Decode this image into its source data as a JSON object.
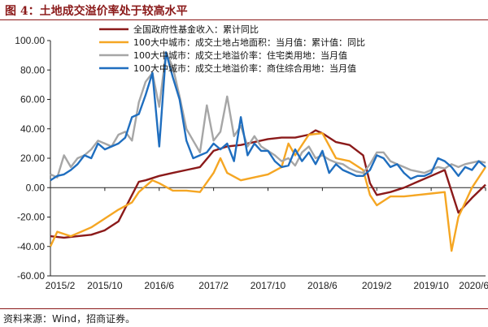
{
  "header": {
    "title": "图 4：土地成交溢价率处于较高水平"
  },
  "footer": {
    "source": "资料来源：Wind，招商证券。"
  },
  "chart_data": {
    "type": "line",
    "title": "",
    "xlabel": "",
    "ylabel": "",
    "ylim": [
      -60,
      100
    ],
    "yticks": [
      "100.00",
      "80.00",
      "60.00",
      "40.00",
      "20.00",
      "0.00",
      "-20.00",
      "-40.00",
      "-60.00"
    ],
    "xlim": [
      "2015-02",
      "2020-06"
    ],
    "xticks": [
      "2015/2",
      "2015/10",
      "2016/6",
      "2017/2",
      "2017/10",
      "2018/6",
      "2019/2",
      "2019/10",
      "2020/6"
    ],
    "grid": false,
    "legend_position": "top-left",
    "series": [
      {
        "name": "全国政府性基金收入：累计同比",
        "color": "#8b1a1a",
        "points": [
          [
            "2015-02",
            -33
          ],
          [
            "2015-04",
            -34
          ],
          [
            "2015-06",
            -33
          ],
          [
            "2015-08",
            -32
          ],
          [
            "2015-10",
            -29
          ],
          [
            "2015-12",
            -23
          ],
          [
            "2016-02",
            -5
          ],
          [
            "2016-03",
            4
          ],
          [
            "2016-04",
            5
          ],
          [
            "2016-06",
            8
          ],
          [
            "2016-08",
            10
          ],
          [
            "2016-10",
            12
          ],
          [
            "2016-12",
            14
          ],
          [
            "2017-02",
            25
          ],
          [
            "2017-04",
            28
          ],
          [
            "2017-06",
            29
          ],
          [
            "2017-08",
            31
          ],
          [
            "2017-10",
            33
          ],
          [
            "2017-12",
            34
          ],
          [
            "2018-02",
            34
          ],
          [
            "2018-04",
            36
          ],
          [
            "2018-05",
            39
          ],
          [
            "2018-06",
            37
          ],
          [
            "2018-08",
            31
          ],
          [
            "2018-10",
            29
          ],
          [
            "2018-12",
            22
          ],
          [
            "2019-01",
            3
          ],
          [
            "2019-02",
            -5
          ],
          [
            "2019-04",
            -3
          ],
          [
            "2019-06",
            0
          ],
          [
            "2019-08",
            4
          ],
          [
            "2019-10",
            8
          ],
          [
            "2019-12",
            12
          ],
          [
            "2020-02",
            -17
          ],
          [
            "2020-03",
            -12
          ],
          [
            "2020-04",
            -7
          ],
          [
            "2020-06",
            2
          ]
        ]
      },
      {
        "name": "100大中城市：成交土地占地面积：当月值：累计值：同比",
        "color": "#f5a623",
        "points": [
          [
            "2015-02",
            -40
          ],
          [
            "2015-03",
            -30
          ],
          [
            "2015-05",
            -33
          ],
          [
            "2015-08",
            -27
          ],
          [
            "2015-12",
            -15
          ],
          [
            "2016-02",
            -10
          ],
          [
            "2016-03",
            -3
          ],
          [
            "2016-05",
            5
          ],
          [
            "2016-06",
            3
          ],
          [
            "2016-08",
            -2
          ],
          [
            "2016-10",
            -2
          ],
          [
            "2016-12",
            -3
          ],
          [
            "2017-02",
            10
          ],
          [
            "2017-03",
            20
          ],
          [
            "2017-04",
            10
          ],
          [
            "2017-06",
            5
          ],
          [
            "2017-08",
            7
          ],
          [
            "2017-10",
            9
          ],
          [
            "2017-12",
            14
          ],
          [
            "2018-01",
            30
          ],
          [
            "2018-02",
            22
          ],
          [
            "2018-04",
            36
          ],
          [
            "2018-06",
            37
          ],
          [
            "2018-08",
            20
          ],
          [
            "2018-10",
            18
          ],
          [
            "2018-12",
            12
          ],
          [
            "2019-01",
            -5
          ],
          [
            "2019-02",
            -12
          ],
          [
            "2019-04",
            -6
          ],
          [
            "2019-06",
            -6
          ],
          [
            "2019-08",
            -5
          ],
          [
            "2019-10",
            -4
          ],
          [
            "2019-12",
            -3
          ],
          [
            "2020-01",
            -43
          ],
          [
            "2020-02",
            -20
          ],
          [
            "2020-04",
            0
          ],
          [
            "2020-06",
            14
          ]
        ]
      },
      {
        "name": "100大中城市：成交土地溢价率：住宅类用地：当月值",
        "color": "#a6a6a6",
        "points": [
          [
            "2015-02",
            9
          ],
          [
            "2015-03",
            7
          ],
          [
            "2015-04",
            22
          ],
          [
            "2015-05",
            14
          ],
          [
            "2015-06",
            20
          ],
          [
            "2015-07",
            22
          ],
          [
            "2015-08",
            26
          ],
          [
            "2015-09",
            32
          ],
          [
            "2015-10",
            30
          ],
          [
            "2015-11",
            28
          ],
          [
            "2015-12",
            36
          ],
          [
            "2016-01",
            38
          ],
          [
            "2016-02",
            32
          ],
          [
            "2016-03",
            58
          ],
          [
            "2016-04",
            72
          ],
          [
            "2016-05",
            78
          ],
          [
            "2016-06",
            55
          ],
          [
            "2016-07",
            92
          ],
          [
            "2016-08",
            82
          ],
          [
            "2016-09",
            62
          ],
          [
            "2016-10",
            40
          ],
          [
            "2016-11",
            32
          ],
          [
            "2016-12",
            24
          ],
          [
            "2017-01",
            56
          ],
          [
            "2017-02",
            32
          ],
          [
            "2017-03",
            38
          ],
          [
            "2017-04",
            62
          ],
          [
            "2017-05",
            35
          ],
          [
            "2017-06",
            42
          ],
          [
            "2017-07",
            28
          ],
          [
            "2017-08",
            35
          ],
          [
            "2017-09",
            28
          ],
          [
            "2017-10",
            25
          ],
          [
            "2017-11",
            22
          ],
          [
            "2017-12",
            18
          ],
          [
            "2018-01",
            20
          ],
          [
            "2018-02",
            15
          ],
          [
            "2018-03",
            24
          ],
          [
            "2018-04",
            28
          ],
          [
            "2018-05",
            20
          ],
          [
            "2018-06",
            22
          ],
          [
            "2018-07",
            19
          ],
          [
            "2018-08",
            17
          ],
          [
            "2018-09",
            16
          ],
          [
            "2018-10",
            13
          ],
          [
            "2018-11",
            11
          ],
          [
            "2018-12",
            10
          ],
          [
            "2019-01",
            16
          ],
          [
            "2019-02",
            24
          ],
          [
            "2019-03",
            24
          ],
          [
            "2019-04",
            18
          ],
          [
            "2019-05",
            16
          ],
          [
            "2019-06",
            14
          ],
          [
            "2019-07",
            12
          ],
          [
            "2019-08",
            11
          ],
          [
            "2019-09",
            10
          ],
          [
            "2019-10",
            12
          ],
          [
            "2019-11",
            14
          ],
          [
            "2019-12",
            13
          ],
          [
            "2020-01",
            16
          ],
          [
            "2020-02",
            14
          ],
          [
            "2020-03",
            16
          ],
          [
            "2020-04",
            17
          ],
          [
            "2020-05",
            18
          ],
          [
            "2020-06",
            17
          ]
        ]
      },
      {
        "name": "100大中城市：成交土地溢价率：商住综合用地：当月值",
        "color": "#1f6ebf",
        "points": [
          [
            "2015-02",
            5
          ],
          [
            "2015-03",
            8
          ],
          [
            "2015-04",
            9
          ],
          [
            "2015-05",
            12
          ],
          [
            "2015-06",
            16
          ],
          [
            "2015-07",
            22
          ],
          [
            "2015-08",
            20
          ],
          [
            "2015-09",
            30
          ],
          [
            "2015-10",
            26
          ],
          [
            "2015-11",
            28
          ],
          [
            "2015-12",
            30
          ],
          [
            "2016-01",
            34
          ],
          [
            "2016-02",
            48
          ],
          [
            "2016-03",
            50
          ],
          [
            "2016-04",
            63
          ],
          [
            "2016-05",
            78
          ],
          [
            "2016-06",
            28
          ],
          [
            "2016-07",
            92
          ],
          [
            "2016-08",
            75
          ],
          [
            "2016-09",
            60
          ],
          [
            "2016-10",
            32
          ],
          [
            "2016-11",
            20
          ],
          [
            "2016-12",
            22
          ],
          [
            "2017-01",
            24
          ],
          [
            "2017-02",
            30
          ],
          [
            "2017-03",
            26
          ],
          [
            "2017-04",
            30
          ],
          [
            "2017-05",
            18
          ],
          [
            "2017-06",
            48
          ],
          [
            "2017-07",
            22
          ],
          [
            "2017-08",
            30
          ],
          [
            "2017-09",
            25
          ],
          [
            "2017-10",
            25
          ],
          [
            "2017-11",
            18
          ],
          [
            "2017-12",
            14
          ],
          [
            "2018-01",
            15
          ],
          [
            "2018-02",
            26
          ],
          [
            "2018-03",
            18
          ],
          [
            "2018-04",
            24
          ],
          [
            "2018-05",
            16
          ],
          [
            "2018-06",
            25
          ],
          [
            "2018-07",
            10
          ],
          [
            "2018-08",
            16
          ],
          [
            "2018-09",
            12
          ],
          [
            "2018-10",
            10
          ],
          [
            "2018-11",
            8
          ],
          [
            "2018-12",
            8
          ],
          [
            "2019-01",
            12
          ],
          [
            "2019-02",
            22
          ],
          [
            "2019-03",
            20
          ],
          [
            "2019-04",
            14
          ],
          [
            "2019-05",
            16
          ],
          [
            "2019-06",
            10
          ],
          [
            "2019-07",
            6
          ],
          [
            "2019-08",
            8
          ],
          [
            "2019-09",
            8
          ],
          [
            "2019-10",
            10
          ],
          [
            "2019-11",
            20
          ],
          [
            "2019-12",
            18
          ],
          [
            "2020-01",
            14
          ],
          [
            "2020-02",
            8
          ],
          [
            "2020-03",
            14
          ],
          [
            "2020-04",
            12
          ],
          [
            "2020-05",
            18
          ],
          [
            "2020-06",
            14
          ]
        ]
      }
    ]
  }
}
